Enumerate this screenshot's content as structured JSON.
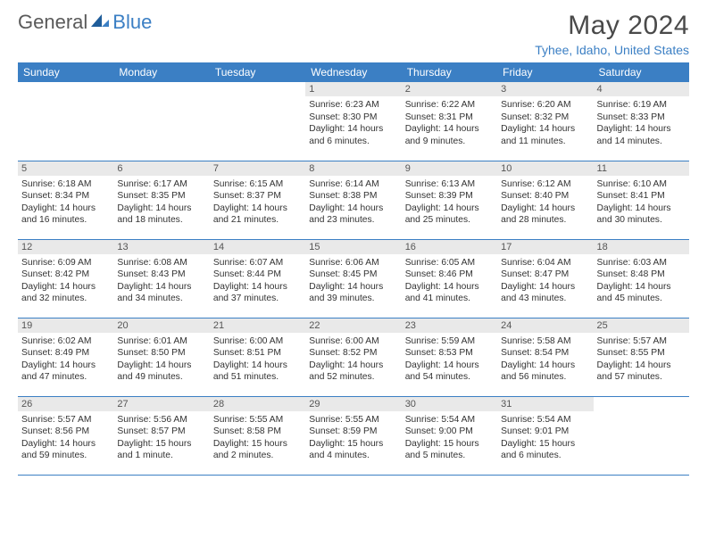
{
  "logo": {
    "text_general": "General",
    "text_blue": "Blue"
  },
  "title": "May 2024",
  "location": "Tyhee, Idaho, United States",
  "colors": {
    "header_bg": "#3b7fc4",
    "header_fg": "#ffffff",
    "daynum_bg": "#e9e9e9",
    "daynum_fg": "#555555",
    "text": "#333333",
    "row_border": "#3b7fc4",
    "logo_gray": "#5a5a5a",
    "logo_blue": "#3b7fc4",
    "background": "#ffffff"
  },
  "typography": {
    "month_title_fontsize": 30,
    "location_fontsize": 14,
    "weekday_fontsize": 12,
    "daynum_fontsize": 11,
    "cell_fontsize": 10.3
  },
  "weekdays": [
    "Sunday",
    "Monday",
    "Tuesday",
    "Wednesday",
    "Thursday",
    "Friday",
    "Saturday"
  ],
  "weeks": [
    [
      null,
      null,
      null,
      {
        "day": "1",
        "sunrise": "Sunrise: 6:23 AM",
        "sunset": "Sunset: 8:30 PM",
        "daylight1": "Daylight: 14 hours",
        "daylight2": "and 6 minutes."
      },
      {
        "day": "2",
        "sunrise": "Sunrise: 6:22 AM",
        "sunset": "Sunset: 8:31 PM",
        "daylight1": "Daylight: 14 hours",
        "daylight2": "and 9 minutes."
      },
      {
        "day": "3",
        "sunrise": "Sunrise: 6:20 AM",
        "sunset": "Sunset: 8:32 PM",
        "daylight1": "Daylight: 14 hours",
        "daylight2": "and 11 minutes."
      },
      {
        "day": "4",
        "sunrise": "Sunrise: 6:19 AM",
        "sunset": "Sunset: 8:33 PM",
        "daylight1": "Daylight: 14 hours",
        "daylight2": "and 14 minutes."
      }
    ],
    [
      {
        "day": "5",
        "sunrise": "Sunrise: 6:18 AM",
        "sunset": "Sunset: 8:34 PM",
        "daylight1": "Daylight: 14 hours",
        "daylight2": "and 16 minutes."
      },
      {
        "day": "6",
        "sunrise": "Sunrise: 6:17 AM",
        "sunset": "Sunset: 8:35 PM",
        "daylight1": "Daylight: 14 hours",
        "daylight2": "and 18 minutes."
      },
      {
        "day": "7",
        "sunrise": "Sunrise: 6:15 AM",
        "sunset": "Sunset: 8:37 PM",
        "daylight1": "Daylight: 14 hours",
        "daylight2": "and 21 minutes."
      },
      {
        "day": "8",
        "sunrise": "Sunrise: 6:14 AM",
        "sunset": "Sunset: 8:38 PM",
        "daylight1": "Daylight: 14 hours",
        "daylight2": "and 23 minutes."
      },
      {
        "day": "9",
        "sunrise": "Sunrise: 6:13 AM",
        "sunset": "Sunset: 8:39 PM",
        "daylight1": "Daylight: 14 hours",
        "daylight2": "and 25 minutes."
      },
      {
        "day": "10",
        "sunrise": "Sunrise: 6:12 AM",
        "sunset": "Sunset: 8:40 PM",
        "daylight1": "Daylight: 14 hours",
        "daylight2": "and 28 minutes."
      },
      {
        "day": "11",
        "sunrise": "Sunrise: 6:10 AM",
        "sunset": "Sunset: 8:41 PM",
        "daylight1": "Daylight: 14 hours",
        "daylight2": "and 30 minutes."
      }
    ],
    [
      {
        "day": "12",
        "sunrise": "Sunrise: 6:09 AM",
        "sunset": "Sunset: 8:42 PM",
        "daylight1": "Daylight: 14 hours",
        "daylight2": "and 32 minutes."
      },
      {
        "day": "13",
        "sunrise": "Sunrise: 6:08 AM",
        "sunset": "Sunset: 8:43 PM",
        "daylight1": "Daylight: 14 hours",
        "daylight2": "and 34 minutes."
      },
      {
        "day": "14",
        "sunrise": "Sunrise: 6:07 AM",
        "sunset": "Sunset: 8:44 PM",
        "daylight1": "Daylight: 14 hours",
        "daylight2": "and 37 minutes."
      },
      {
        "day": "15",
        "sunrise": "Sunrise: 6:06 AM",
        "sunset": "Sunset: 8:45 PM",
        "daylight1": "Daylight: 14 hours",
        "daylight2": "and 39 minutes."
      },
      {
        "day": "16",
        "sunrise": "Sunrise: 6:05 AM",
        "sunset": "Sunset: 8:46 PM",
        "daylight1": "Daylight: 14 hours",
        "daylight2": "and 41 minutes."
      },
      {
        "day": "17",
        "sunrise": "Sunrise: 6:04 AM",
        "sunset": "Sunset: 8:47 PM",
        "daylight1": "Daylight: 14 hours",
        "daylight2": "and 43 minutes."
      },
      {
        "day": "18",
        "sunrise": "Sunrise: 6:03 AM",
        "sunset": "Sunset: 8:48 PM",
        "daylight1": "Daylight: 14 hours",
        "daylight2": "and 45 minutes."
      }
    ],
    [
      {
        "day": "19",
        "sunrise": "Sunrise: 6:02 AM",
        "sunset": "Sunset: 8:49 PM",
        "daylight1": "Daylight: 14 hours",
        "daylight2": "and 47 minutes."
      },
      {
        "day": "20",
        "sunrise": "Sunrise: 6:01 AM",
        "sunset": "Sunset: 8:50 PM",
        "daylight1": "Daylight: 14 hours",
        "daylight2": "and 49 minutes."
      },
      {
        "day": "21",
        "sunrise": "Sunrise: 6:00 AM",
        "sunset": "Sunset: 8:51 PM",
        "daylight1": "Daylight: 14 hours",
        "daylight2": "and 51 minutes."
      },
      {
        "day": "22",
        "sunrise": "Sunrise: 6:00 AM",
        "sunset": "Sunset: 8:52 PM",
        "daylight1": "Daylight: 14 hours",
        "daylight2": "and 52 minutes."
      },
      {
        "day": "23",
        "sunrise": "Sunrise: 5:59 AM",
        "sunset": "Sunset: 8:53 PM",
        "daylight1": "Daylight: 14 hours",
        "daylight2": "and 54 minutes."
      },
      {
        "day": "24",
        "sunrise": "Sunrise: 5:58 AM",
        "sunset": "Sunset: 8:54 PM",
        "daylight1": "Daylight: 14 hours",
        "daylight2": "and 56 minutes."
      },
      {
        "day": "25",
        "sunrise": "Sunrise: 5:57 AM",
        "sunset": "Sunset: 8:55 PM",
        "daylight1": "Daylight: 14 hours",
        "daylight2": "and 57 minutes."
      }
    ],
    [
      {
        "day": "26",
        "sunrise": "Sunrise: 5:57 AM",
        "sunset": "Sunset: 8:56 PM",
        "daylight1": "Daylight: 14 hours",
        "daylight2": "and 59 minutes."
      },
      {
        "day": "27",
        "sunrise": "Sunrise: 5:56 AM",
        "sunset": "Sunset: 8:57 PM",
        "daylight1": "Daylight: 15 hours",
        "daylight2": "and 1 minute."
      },
      {
        "day": "28",
        "sunrise": "Sunrise: 5:55 AM",
        "sunset": "Sunset: 8:58 PM",
        "daylight1": "Daylight: 15 hours",
        "daylight2": "and 2 minutes."
      },
      {
        "day": "29",
        "sunrise": "Sunrise: 5:55 AM",
        "sunset": "Sunset: 8:59 PM",
        "daylight1": "Daylight: 15 hours",
        "daylight2": "and 4 minutes."
      },
      {
        "day": "30",
        "sunrise": "Sunrise: 5:54 AM",
        "sunset": "Sunset: 9:00 PM",
        "daylight1": "Daylight: 15 hours",
        "daylight2": "and 5 minutes."
      },
      {
        "day": "31",
        "sunrise": "Sunrise: 5:54 AM",
        "sunset": "Sunset: 9:01 PM",
        "daylight1": "Daylight: 15 hours",
        "daylight2": "and 6 minutes."
      },
      null
    ]
  ]
}
